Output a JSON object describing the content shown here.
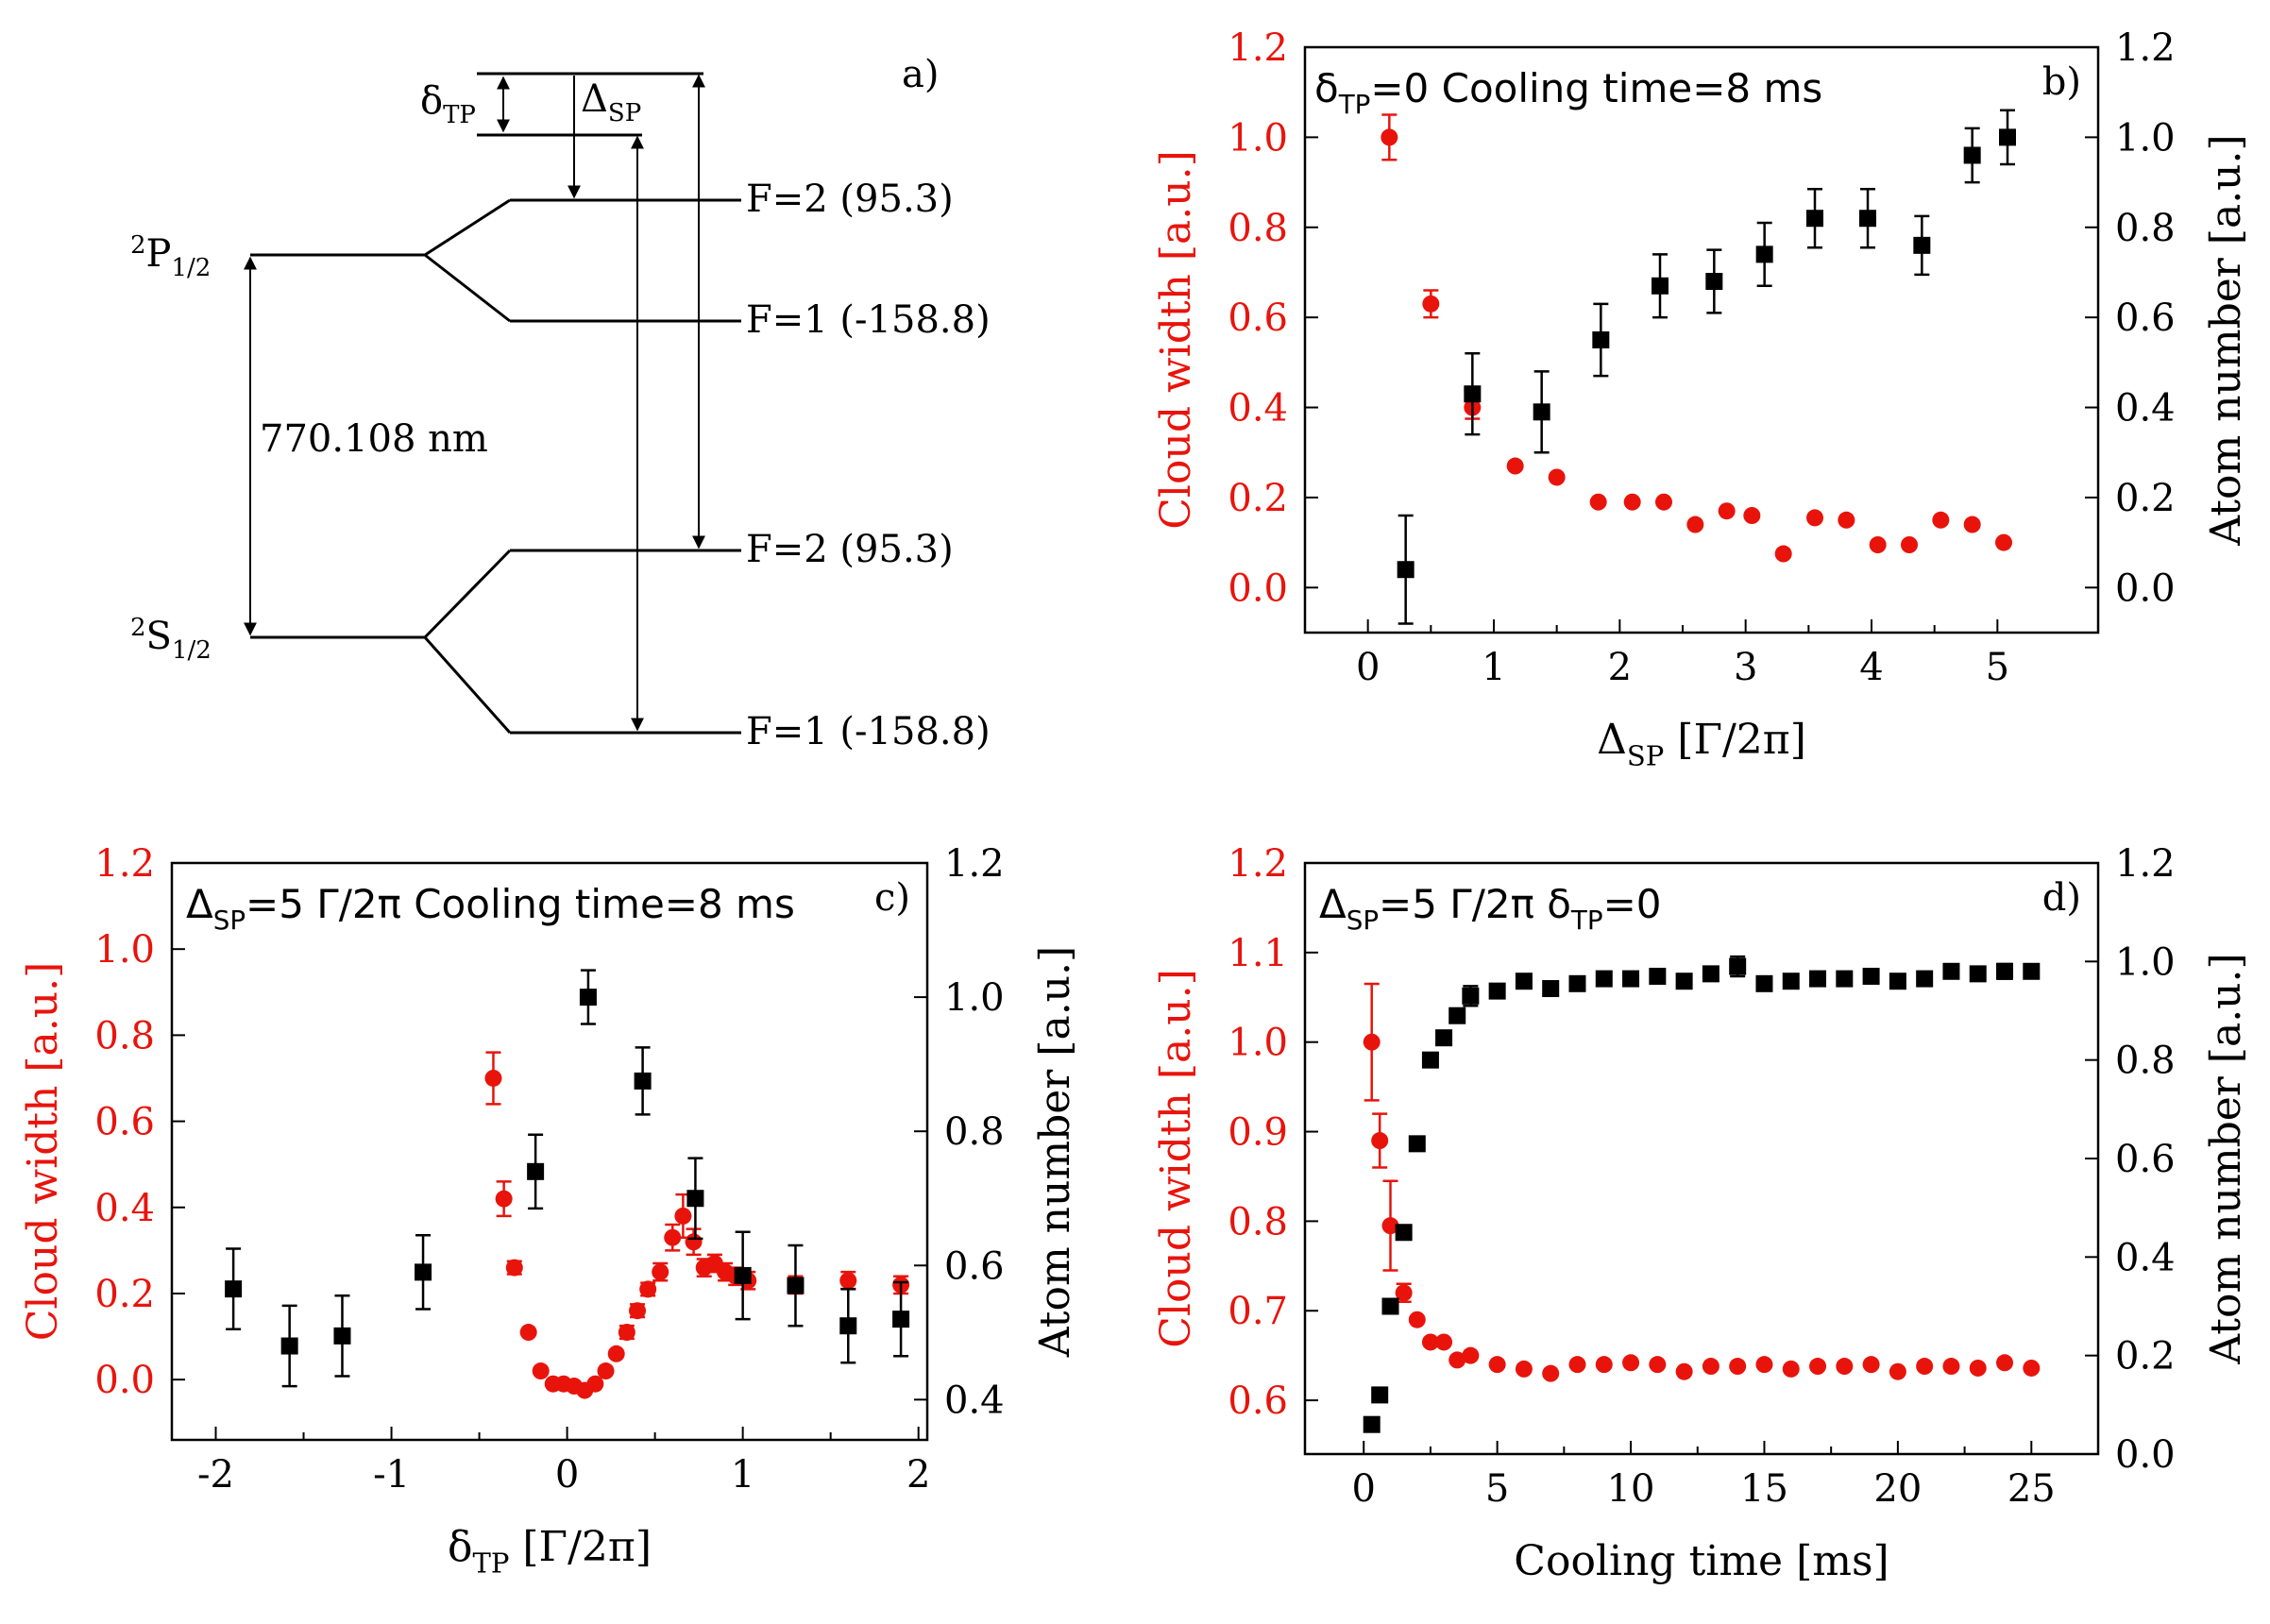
{
  "colors": {
    "red": "#e8140c",
    "black": "#000000"
  },
  "level_diagram": {
    "panel_label": "a)",
    "p_level": {
      "sup": "2",
      "main": "P",
      "sub": "1/2"
    },
    "s_level": {
      "sup": "2",
      "main": "S",
      "sub": "1/2"
    },
    "wavelength": "770.108 nm",
    "p_f2": "F=2 (95.3)",
    "p_f1": "F=1 (-158.8)",
    "s_f2": "F=2 (95.3)",
    "s_f1": "F=1 (-158.8)",
    "delta_tp": {
      "main": "δ",
      "sub": "TP"
    },
    "Delta_sp": {
      "main": "Δ",
      "sub": "SP"
    }
  },
  "chart_data": [
    {
      "id": "b",
      "type": "scatter",
      "panel_label": "b)",
      "title_parts": [
        {
          "t": "δ",
          "sub": false
        },
        {
          "t": "TP",
          "sub": true
        },
        {
          "t": "=0 Cooling time=8 ms",
          "sub": false
        }
      ],
      "xlabel_parts": [
        {
          "t": "Δ",
          "sub": false
        },
        {
          "t": "SP",
          "sub": true
        },
        {
          "t": " [Γ/2π]",
          "sub": false
        }
      ],
      "ylabel_left": "Cloud width [a.u.]",
      "ylabel_right": "Atom number [a.u.]",
      "xlim": [
        -0.5,
        5.8
      ],
      "xticks": [
        0,
        1,
        2,
        3,
        4,
        5
      ],
      "xtick_labels": [
        "0",
        "1",
        "2",
        "3",
        "4",
        "5"
      ],
      "ylim_left": [
        -0.1,
        1.2
      ],
      "yticks_left": [
        0.0,
        0.2,
        0.4,
        0.6,
        0.8,
        1.0,
        1.2
      ],
      "ytick_labels_left": [
        "0.0",
        "0.2",
        "0.4",
        "0.6",
        "0.8",
        "1.0",
        "1.2"
      ],
      "ylim_right": [
        -0.1,
        1.2
      ],
      "yticks_right": [
        0.0,
        0.2,
        0.4,
        0.6,
        0.8,
        1.0,
        1.2
      ],
      "ytick_labels_right": [
        "0.0",
        "0.2",
        "0.4",
        "0.6",
        "0.8",
        "1.0",
        "1.2"
      ],
      "series": [
        {
          "name": "Cloud width",
          "axis": "left",
          "color": "#e8140c",
          "marker": "circle",
          "x": [
            0.17,
            0.5,
            0.83,
            1.17,
            1.5,
            1.83,
            2.1,
            2.35,
            2.6,
            2.85,
            3.05,
            3.3,
            3.55,
            3.8,
            4.05,
            4.3,
            4.55,
            4.8,
            5.05
          ],
          "y": [
            1.0,
            0.63,
            0.4,
            0.27,
            0.245,
            0.19,
            0.19,
            0.19,
            0.14,
            0.17,
            0.16,
            0.075,
            0.155,
            0.15,
            0.095,
            0.095,
            0.15,
            0.14,
            0.1
          ],
          "err": [
            0.05,
            0.03,
            0.025,
            0,
            0,
            0,
            0,
            0,
            0,
            0,
            0,
            0,
            0,
            0,
            0,
            0,
            0,
            0,
            0
          ]
        },
        {
          "name": "Atom number",
          "axis": "right",
          "color": "#000000",
          "marker": "square",
          "x": [
            0.3,
            0.83,
            1.38,
            1.85,
            2.32,
            2.75,
            3.15,
            3.55,
            3.97,
            4.4,
            4.8,
            5.08
          ],
          "y": [
            0.04,
            0.43,
            0.39,
            0.55,
            0.67,
            0.68,
            0.74,
            0.82,
            0.82,
            0.76,
            0.96,
            1.0
          ],
          "err": [
            0.12,
            0.09,
            0.09,
            0.08,
            0.07,
            0.07,
            0.07,
            0.065,
            0.065,
            0.065,
            0.06,
            0.06
          ]
        }
      ]
    },
    {
      "id": "c",
      "type": "scatter",
      "panel_label": "c)",
      "title_parts": [
        {
          "t": "Δ",
          "sub": false
        },
        {
          "t": "SP",
          "sub": true
        },
        {
          "t": "=5 Γ/2π  Cooling time=8 ms",
          "sub": false
        }
      ],
      "xlabel_parts": [
        {
          "t": "δ",
          "sub": false
        },
        {
          "t": "TP",
          "sub": true
        },
        {
          "t": " [Γ/2π]",
          "sub": false
        }
      ],
      "ylabel_left": "Cloud width [a.u.]",
      "ylabel_right": "Atom number [a.u.]",
      "xlim": [
        -2.25,
        2.05
      ],
      "xticks": [
        -2,
        -1,
        0,
        1,
        2
      ],
      "xtick_labels": [
        "-2",
        "-1",
        "0",
        "1",
        "2"
      ],
      "ylim_left": [
        -0.14,
        1.2
      ],
      "yticks_left": [
        0.0,
        0.2,
        0.4,
        0.6,
        0.8,
        1.0,
        1.2
      ],
      "ytick_labels_left": [
        "0.0",
        "0.2",
        "0.4",
        "0.6",
        "0.8",
        "1.0",
        "1.2"
      ],
      "ylim_right": [
        0.34,
        1.2
      ],
      "yticks_right": [
        0.4,
        0.6,
        0.8,
        1.0,
        1.2
      ],
      "ytick_labels_right": [
        "0.4",
        "0.6",
        "0.8",
        "1.0",
        "1.2"
      ],
      "series": [
        {
          "name": "Cloud width",
          "axis": "left",
          "color": "#e8140c",
          "marker": "circle",
          "x": [
            -0.42,
            -0.36,
            -0.3,
            -0.22,
            -0.15,
            -0.08,
            -0.02,
            0.04,
            0.1,
            0.16,
            0.22,
            0.28,
            0.34,
            0.4,
            0.46,
            0.53,
            0.6,
            0.66,
            0.72,
            0.78,
            0.84,
            0.9,
            0.96,
            1.03,
            1.3,
            1.6,
            1.9
          ],
          "y": [
            0.7,
            0.42,
            0.26,
            0.11,
            0.02,
            -0.01,
            -0.01,
            -0.015,
            -0.025,
            -0.01,
            0.02,
            0.06,
            0.11,
            0.16,
            0.21,
            0.25,
            0.33,
            0.38,
            0.32,
            0.26,
            0.27,
            0.25,
            0.24,
            0.23,
            0.22,
            0.23,
            0.22
          ],
          "err": [
            0.06,
            0.04,
            0.015,
            0,
            0,
            0,
            0,
            0,
            0,
            0,
            0,
            0,
            0.015,
            0.015,
            0.015,
            0.02,
            0.03,
            0.05,
            0.03,
            0.02,
            0.02,
            0.02,
            0.02,
            0.02,
            0.02,
            0.02,
            0.02
          ]
        },
        {
          "name": "Atom number",
          "axis": "right",
          "color": "#000000",
          "marker": "square",
          "x": [
            -1.9,
            -1.58,
            -1.28,
            -0.82,
            -0.18,
            0.12,
            0.43,
            0.73,
            1.0,
            1.3,
            1.6,
            1.9
          ],
          "y": [
            0.565,
            0.48,
            0.495,
            0.59,
            0.74,
            1.0,
            0.875,
            0.7,
            0.585,
            0.57,
            0.51,
            0.52
          ],
          "err": [
            0.06,
            0.06,
            0.06,
            0.055,
            0.055,
            0.04,
            0.05,
            0.06,
            0.065,
            0.06,
            0.055,
            0.055
          ]
        }
      ]
    },
    {
      "id": "d",
      "type": "scatter",
      "panel_label": "d)",
      "title_parts": [
        {
          "t": "Δ",
          "sub": false
        },
        {
          "t": "SP",
          "sub": true
        },
        {
          "t": "=5 Γ/2π  δ",
          "sub": false
        },
        {
          "t": "TP",
          "sub": true
        },
        {
          "t": "=0",
          "sub": false
        }
      ],
      "xlabel_parts": [
        {
          "t": "Cooling time [ms]",
          "sub": false
        }
      ],
      "ylabel_left": "Cloud width [a.u.]",
      "ylabel_right": "Atom number [a.u.]",
      "xlim": [
        -2.2,
        27.5
      ],
      "xticks": [
        0,
        5,
        10,
        15,
        20,
        25
      ],
      "xtick_labels": [
        "0",
        "5",
        "10",
        "15",
        "20",
        "25"
      ],
      "ylim_left": [
        0.54,
        1.2
      ],
      "yticks_left": [
        0.6,
        0.7,
        0.8,
        0.9,
        1.0,
        1.1,
        1.2
      ],
      "ytick_labels_left": [
        "0.6",
        "0.7",
        "0.8",
        "0.9",
        "1.0",
        "1.1",
        "1.2"
      ],
      "ylim_right": [
        0.0,
        1.2
      ],
      "yticks_right": [
        0.0,
        0.2,
        0.4,
        0.6,
        0.8,
        1.0,
        1.2
      ],
      "ytick_labels_right": [
        "0.0",
        "0.2",
        "0.4",
        "0.6",
        "0.8",
        "1.0",
        "1.2"
      ],
      "series": [
        {
          "name": "Cloud width",
          "axis": "left",
          "color": "#e8140c",
          "marker": "circle",
          "x": [
            0.3,
            0.6,
            1.0,
            1.5,
            2.0,
            2.5,
            3.0,
            3.5,
            4.0,
            5,
            6,
            7,
            8,
            9,
            10,
            11,
            12,
            13,
            14,
            15,
            16,
            17,
            18,
            19,
            20,
            21,
            22,
            23,
            24,
            25
          ],
          "y": [
            1.0,
            0.89,
            0.795,
            0.72,
            0.69,
            0.665,
            0.665,
            0.645,
            0.65,
            0.64,
            0.635,
            0.63,
            0.64,
            0.64,
            0.642,
            0.64,
            0.632,
            0.638,
            0.638,
            0.64,
            0.635,
            0.638,
            0.638,
            0.64,
            0.632,
            0.638,
            0.638,
            0.636,
            0.642,
            0.636
          ],
          "err": [
            0.065,
            0.03,
            0.05,
            0.01,
            0,
            0,
            0,
            0,
            0,
            0,
            0,
            0,
            0,
            0,
            0,
            0,
            0,
            0,
            0,
            0,
            0,
            0,
            0,
            0,
            0,
            0,
            0,
            0,
            0,
            0
          ]
        },
        {
          "name": "Atom number",
          "axis": "right",
          "color": "#000000",
          "marker": "square",
          "x": [
            0.3,
            0.6,
            1.0,
            1.5,
            2.0,
            2.5,
            3.0,
            3.5,
            4.0,
            5,
            6,
            7,
            8,
            9,
            10,
            11,
            12,
            13,
            14,
            15,
            16,
            17,
            18,
            19,
            20,
            21,
            22,
            23,
            24,
            25
          ],
          "y": [
            0.06,
            0.12,
            0.3,
            0.45,
            0.63,
            0.8,
            0.845,
            0.89,
            0.93,
            0.94,
            0.96,
            0.945,
            0.955,
            0.965,
            0.965,
            0.97,
            0.96,
            0.975,
            0.99,
            0.955,
            0.96,
            0.965,
            0.965,
            0.97,
            0.96,
            0.965,
            0.98,
            0.975,
            0.98,
            0.98
          ],
          "err": [
            0,
            0,
            0,
            0,
            0,
            0,
            0,
            0,
            0.02,
            0,
            0,
            0,
            0,
            0,
            0,
            0,
            0,
            0,
            0.02,
            0,
            0,
            0,
            0,
            0,
            0,
            0,
            0,
            0,
            0.015,
            0
          ]
        }
      ]
    }
  ]
}
